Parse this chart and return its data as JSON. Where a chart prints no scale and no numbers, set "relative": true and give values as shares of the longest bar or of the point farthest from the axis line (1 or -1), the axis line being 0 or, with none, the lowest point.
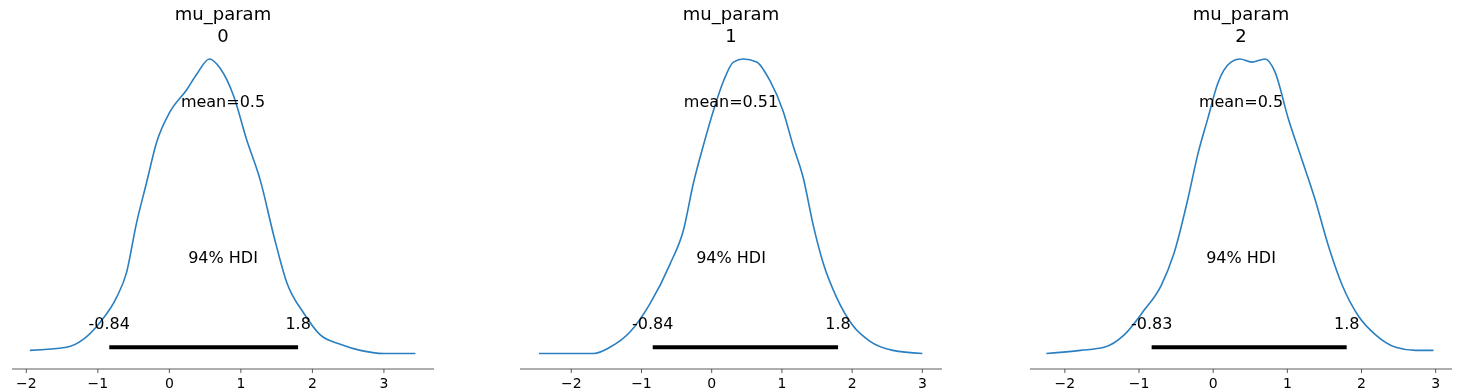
{
  "chart_data": [
    {
      "type": "line",
      "title": "mu_param",
      "subtitle": "0",
      "relative": true,
      "xlim": [
        -2.2,
        3.7
      ],
      "xticks": [
        -2,
        -1,
        0,
        1,
        2,
        3
      ],
      "x": [
        -1.95,
        -1.44,
        -0.97,
        -0.74,
        -0.6,
        -0.46,
        -0.32,
        -0.18,
        0.01,
        0.24,
        0.38,
        0.56,
        0.71,
        0.9,
        1.08,
        1.27,
        1.46,
        1.64,
        1.88,
        2.11,
        2.39,
        2.67,
        3.0,
        3.44
      ],
      "series": [
        {
          "color": "#2a7fc0",
          "values": [
            0.06,
            0.07,
            0.15,
            0.23,
            0.31,
            0.47,
            0.6,
            0.73,
            0.83,
            0.9,
            0.95,
            1.0,
            0.97,
            0.88,
            0.74,
            0.61,
            0.43,
            0.28,
            0.18,
            0.11,
            0.08,
            0.06,
            0.05,
            0.05
          ]
        },
        {
          "color": "#000000",
          "x": [
            -0.84,
            1.8
          ],
          "values": [
            0.07,
            0.07
          ]
        }
      ],
      "annotations": [
        "mean=0.5",
        "94% HDI",
        {
          "text": "-0.84",
          "x": -0.84,
          "y": 0.07
        },
        {
          "text": "1.8",
          "x": 1.8,
          "y": 0.07
        }
      ]
    },
    {
      "type": "line",
      "title": "mu_param",
      "subtitle": "1",
      "relative": true,
      "xlim": [
        -2.73,
        3.28
      ],
      "xticks": [
        -2,
        -1,
        0,
        1,
        2,
        3
      ],
      "x": [
        -2.46,
        -1.68,
        -1.45,
        -1.16,
        -0.88,
        -0.59,
        -0.4,
        -0.26,
        -0.12,
        0.02,
        0.17,
        0.31,
        0.45,
        0.64,
        0.83,
        1.02,
        1.16,
        1.3,
        1.45,
        1.59,
        1.78,
        2.01,
        2.25,
        2.58,
        3.0
      ],
      "series": [
        {
          "color": "#2a7fc0",
          "values": [
            0.05,
            0.05,
            0.07,
            0.12,
            0.21,
            0.34,
            0.45,
            0.6,
            0.72,
            0.83,
            0.93,
            0.99,
            1.0,
            0.99,
            0.93,
            0.83,
            0.72,
            0.62,
            0.46,
            0.34,
            0.23,
            0.14,
            0.09,
            0.06,
            0.05
          ]
        },
        {
          "color": "#000000",
          "x": [
            -0.84,
            1.8
          ],
          "values": [
            0.07,
            0.07
          ]
        }
      ],
      "annotations": [
        "mean=0.51",
        "94% HDI",
        {
          "text": "-0.84",
          "x": -0.84,
          "y": 0.07
        },
        {
          "text": "1.8",
          "x": 1.8,
          "y": 0.07
        }
      ]
    },
    {
      "type": "line",
      "title": "mu_param",
      "subtitle": "2",
      "relative": true,
      "xlim": [
        -2.47,
        3.22
      ],
      "xticks": [
        -2,
        -1,
        0,
        1,
        2,
        3
      ],
      "x": [
        -2.25,
        -1.79,
        -1.47,
        -1.2,
        -0.93,
        -0.7,
        -0.52,
        -0.34,
        -0.21,
        -0.07,
        0.06,
        0.24,
        0.36,
        0.52,
        0.7,
        0.83,
        1.01,
        1.19,
        1.37,
        1.55,
        1.74,
        1.96,
        2.19,
        2.46,
        2.73,
        2.97
      ],
      "series": [
        {
          "color": "#2a7fc0",
          "values": [
            0.05,
            0.06,
            0.07,
            0.11,
            0.19,
            0.27,
            0.38,
            0.55,
            0.69,
            0.81,
            0.92,
            0.99,
            1.0,
            0.99,
            1.0,
            0.96,
            0.81,
            0.68,
            0.55,
            0.4,
            0.27,
            0.17,
            0.11,
            0.07,
            0.06,
            0.06
          ]
        },
        {
          "color": "#000000",
          "x": [
            -0.83,
            1.8
          ],
          "values": [
            0.07,
            0.07
          ]
        }
      ],
      "annotations": [
        "mean=0.5",
        "94% HDI",
        {
          "text": "-0.83",
          "x": -0.83,
          "y": 0.07
        },
        {
          "text": "1.8",
          "x": 1.8,
          "y": 0.07
        }
      ]
    }
  ]
}
